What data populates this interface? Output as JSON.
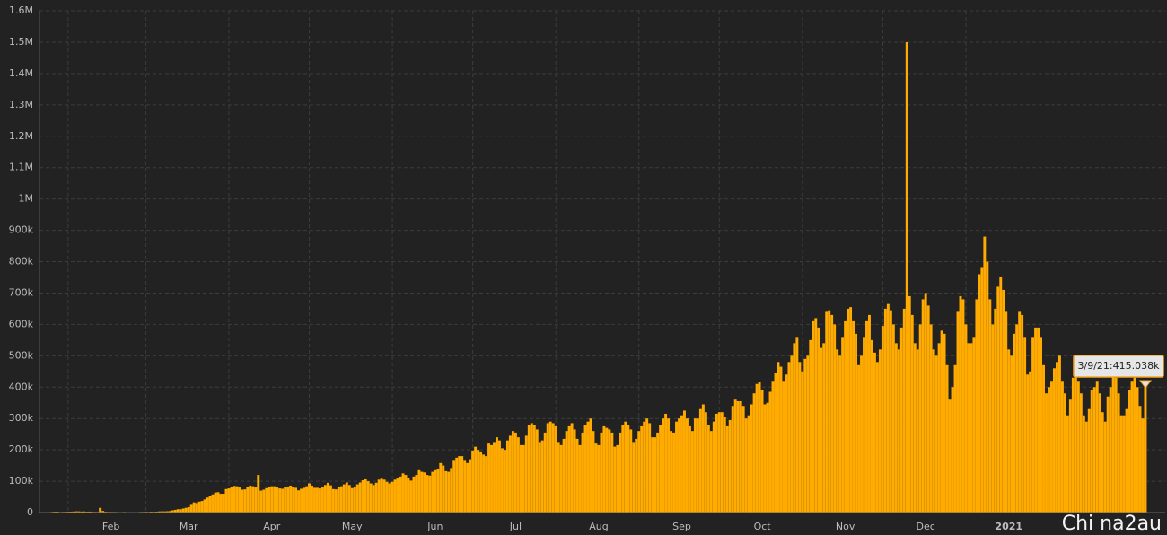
{
  "chart_data": {
    "type": "bar",
    "color": "#ffab00",
    "grid": true,
    "ylim": [
      0,
      1600000
    ],
    "yticks": [
      0,
      {
        "value": 100000,
        "label": "100k"
      },
      {
        "value": 200000,
        "label": "200k"
      },
      {
        "value": 300000,
        "label": "300k"
      },
      {
        "value": 400000,
        "label": "400k"
      },
      {
        "value": 500000,
        "label": "500k"
      },
      {
        "value": 600000,
        "label": "600k"
      },
      {
        "value": 700000,
        "label": "700k"
      },
      {
        "value": 800000,
        "label": "800k"
      },
      {
        "value": 900000,
        "label": "900k"
      },
      {
        "value": 1000000,
        "label": "1M"
      },
      {
        "value": 1100000,
        "label": "1.1M"
      },
      {
        "value": 1200000,
        "label": "1.2M"
      },
      {
        "value": 1300000,
        "label": "1.3M"
      },
      {
        "value": 1400000,
        "label": "1.4M"
      },
      {
        "value": 1500000,
        "label": "1.5M"
      },
      {
        "value": 1600000,
        "label": "1.6M"
      }
    ],
    "tooltip": "3/9/21:415.038k",
    "watermark": "Chi na2au",
    "categories": [
      null,
      null,
      null,
      null,
      null,
      null,
      null,
      null,
      null,
      null,
      null,
      null,
      null,
      null,
      null,
      null,
      null,
      null,
      null,
      null,
      null,
      null,
      null,
      null,
      null,
      null,
      "Feb",
      null,
      null,
      null,
      null,
      null,
      null,
      null,
      null,
      null,
      null,
      null,
      null,
      null,
      null,
      null,
      null,
      null,
      null,
      null,
      null,
      null,
      null,
      null,
      null,
      null,
      null,
      null,
      null,
      "Mar",
      null,
      null,
      null,
      null,
      null,
      null,
      null,
      null,
      null,
      null,
      null,
      null,
      null,
      null,
      null,
      null,
      null,
      null,
      null,
      null,
      null,
      null,
      null,
      null,
      null,
      null,
      null,
      null,
      null,
      null,
      "Apr",
      null,
      null,
      null,
      null,
      null,
      null,
      null,
      null,
      null,
      null,
      null,
      null,
      null,
      null,
      null,
      null,
      null,
      null,
      null,
      null,
      null,
      null,
      null,
      null,
      null,
      null,
      null,
      null,
      null,
      "May",
      null,
      null,
      null,
      null,
      null,
      null,
      null,
      null,
      null,
      null,
      null,
      null,
      null,
      null,
      null,
      null,
      null,
      null,
      null,
      null,
      null,
      null,
      null,
      null,
      null,
      null,
      null,
      null,
      null,
      null,
      "Jun",
      null,
      null,
      null,
      null,
      null,
      null,
      null,
      null,
      null,
      null,
      null,
      null,
      null,
      null,
      null,
      null,
      null,
      null,
      null,
      null,
      null,
      null,
      null,
      null,
      null,
      null,
      null,
      null,
      null,
      "Jul",
      null,
      null,
      null,
      null,
      null,
      null,
      null,
      null,
      null,
      null,
      null,
      null,
      null,
      null,
      null,
      null,
      null,
      null,
      null,
      null,
      null,
      null,
      null,
      null,
      null,
      null,
      null,
      null,
      null,
      null,
      "Aug",
      null,
      null,
      null,
      null,
      null,
      null,
      null,
      null,
      null,
      null,
      null,
      null,
      null,
      null,
      null,
      null,
      null,
      null,
      null,
      null,
      null,
      null,
      null,
      null,
      null,
      null,
      null,
      null,
      null,
      null,
      "Sep",
      null,
      null,
      null,
      null,
      null,
      null,
      null,
      null,
      null,
      null,
      null,
      null,
      null,
      null,
      null,
      null,
      null,
      null,
      null,
      null,
      null,
      null,
      null,
      null,
      null,
      null,
      null,
      null,
      null,
      "Oct",
      null,
      null,
      null,
      null,
      null,
      null,
      null,
      null,
      null,
      null,
      null,
      null,
      null,
      null,
      null,
      null,
      null,
      null,
      null,
      null,
      null,
      null,
      null,
      null,
      null,
      null,
      null,
      null,
      null,
      null,
      "Nov",
      null,
      null,
      null,
      null,
      null,
      null,
      null,
      null,
      null,
      null,
      null,
      null,
      null,
      null,
      null,
      null,
      null,
      null,
      null,
      null,
      null,
      null,
      null,
      null,
      null,
      null,
      null,
      null,
      null,
      "Dec",
      null,
      null,
      null,
      null,
      null,
      null,
      null,
      null,
      null,
      null,
      null,
      null,
      null,
      null,
      null,
      null,
      null,
      null,
      null,
      null,
      null,
      null,
      null,
      null,
      null,
      null,
      null,
      null,
      null,
      null,
      "2021",
      null,
      null,
      null,
      null,
      null,
      null,
      null,
      null,
      null,
      null,
      null,
      null,
      null,
      null,
      null,
      null,
      null,
      null,
      null,
      null,
      null,
      null,
      null,
      null,
      null,
      null,
      null,
      null,
      null,
      null,
      null,
      null,
      null,
      null,
      null,
      null,
      null,
      null,
      null,
      null,
      null,
      null,
      null,
      null,
      null,
      null,
      null,
      null,
      null,
      null,
      null
    ],
    "values": [
      600,
      300,
      700,
      800,
      2100,
      2600,
      2800,
      1800,
      2100,
      2200,
      2600,
      2800,
      3200,
      3900,
      3700,
      3200,
      3500,
      2700,
      3000,
      2500,
      2100,
      2000,
      15000,
      5100,
      2600,
      2100,
      2000,
      1900,
      1800,
      600,
      1000,
      1800,
      1200,
      800,
      900,
      1400,
      1300,
      1900,
      2000,
      2400,
      2000,
      2700,
      2300,
      2800,
      3600,
      4000,
      3800,
      4200,
      4700,
      7100,
      8700,
      10800,
      10600,
      13000,
      15200,
      17100,
      24600,
      32500,
      30400,
      35000,
      37000,
      42000,
      48000,
      53000,
      58000,
      64000,
      65000,
      60000,
      60000,
      75000,
      77000,
      82000,
      85000,
      84000,
      80000,
      73000,
      74000,
      81000,
      86000,
      84000,
      80000,
      120000,
      70000,
      73000,
      78000,
      82000,
      84000,
      84000,
      80000,
      77000,
      76000,
      80000,
      83000,
      86000,
      82000,
      79000,
      71000,
      76000,
      79000,
      84000,
      93000,
      86000,
      79000,
      79000,
      77000,
      80000,
      88000,
      95000,
      87000,
      75000,
      74000,
      81000,
      84000,
      90000,
      96000,
      88000,
      78000,
      80000,
      90000,
      96000,
      103000,
      106000,
      100000,
      93000,
      88000,
      95000,
      105000,
      108000,
      105000,
      98000,
      93000,
      98000,
      105000,
      110000,
      115000,
      125000,
      120000,
      110000,
      102000,
      115000,
      120000,
      135000,
      130000,
      128000,
      120000,
      118000,
      130000,
      135000,
      140000,
      158000,
      150000,
      132000,
      130000,
      142000,
      165000,
      175000,
      180000,
      180000,
      165000,
      158000,
      170000,
      198000,
      210000,
      200000,
      195000,
      185000,
      180000,
      220000,
      215000,
      225000,
      240000,
      230000,
      205000,
      200000,
      230000,
      245000,
      260000,
      255000,
      240000,
      215000,
      215000,
      245000,
      280000,
      285000,
      280000,
      265000,
      225000,
      230000,
      255000,
      285000,
      290000,
      285000,
      275000,
      225000,
      215000,
      235000,
      260000,
      275000,
      285000,
      265000,
      235000,
      215000,
      255000,
      280000,
      290000,
      300000,
      260000,
      220000,
      215000,
      255000,
      275000,
      270000,
      265000,
      255000,
      210000,
      215000,
      255000,
      280000,
      290000,
      280000,
      265000,
      225000,
      235000,
      260000,
      275000,
      290000,
      300000,
      285000,
      240000,
      240000,
      255000,
      280000,
      300000,
      315000,
      300000,
      260000,
      255000,
      290000,
      300000,
      310000,
      325000,
      300000,
      275000,
      260000,
      300000,
      300000,
      330000,
      345000,
      320000,
      280000,
      260000,
      290000,
      315000,
      320000,
      320000,
      305000,
      275000,
      295000,
      340000,
      360000,
      355000,
      355000,
      340000,
      300000,
      310000,
      345000,
      380000,
      410000,
      415000,
      390000,
      345000,
      350000,
      385000,
      420000,
      445000,
      480000,
      465000,
      420000,
      440000,
      480000,
      500000,
      540000,
      560000,
      480000,
      450000,
      490000,
      500000,
      550000,
      610000,
      620000,
      590000,
      525000,
      540000,
      640000,
      645000,
      630000,
      600000,
      520000,
      500000,
      560000,
      610000,
      650000,
      655000,
      610000,
      570000,
      470000,
      500000,
      560000,
      610000,
      630000,
      550000,
      510000,
      480000,
      520000,
      595000,
      650000,
      665000,
      645000,
      600000,
      540000,
      520000,
      590000,
      650000,
      1500000,
      690000,
      630000,
      540000,
      520000,
      600000,
      680000,
      700000,
      660000,
      600000,
      520000,
      500000,
      540000,
      580000,
      570000,
      470000,
      360000,
      400000,
      470000,
      640000,
      690000,
      680000,
      600000,
      540000,
      540000,
      560000,
      680000,
      760000,
      780000,
      880000,
      800000,
      680000,
      600000,
      650000,
      720000,
      750000,
      710000,
      640000,
      520000,
      500000,
      570000,
      600000,
      640000,
      630000,
      560000,
      440000,
      450000,
      560000,
      590000,
      590000,
      560000,
      470000,
      380000,
      400000,
      420000,
      460000,
      480000,
      500000,
      420000,
      380000,
      310000,
      360000,
      430000,
      440000,
      420000,
      380000,
      310000,
      290000,
      330000,
      390000,
      400000,
      420000,
      380000,
      320000,
      290000,
      370000,
      400000,
      450000,
      430000,
      380000,
      310000,
      310000,
      330000,
      390000,
      420000,
      430000,
      400000,
      340000,
      300000,
      415038
    ]
  }
}
